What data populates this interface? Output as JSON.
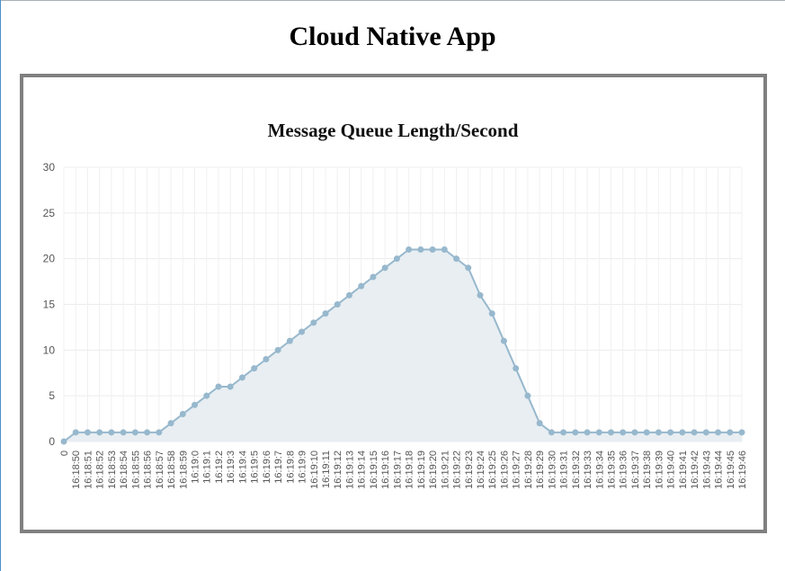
{
  "page": {
    "title": "Cloud Native App"
  },
  "chart_data": {
    "type": "line",
    "title": "Message Queue Length/Second",
    "xlabel": "",
    "ylabel": "",
    "ylim": [
      0,
      30
    ],
    "yticks": [
      0,
      5,
      10,
      15,
      20,
      25,
      30
    ],
    "grid": true,
    "legend": "none",
    "categories": [
      "0",
      "16:18:50",
      "16:18:51",
      "16:18:52",
      "16:18:53",
      "16:18:54",
      "16:18:55",
      "16:18:56",
      "16:18:57",
      "16:18:58",
      "16:18:59",
      "16:19:0",
      "16:19:1",
      "16:19:2",
      "16:19:3",
      "16:19:4",
      "16:19:5",
      "16:19:6",
      "16:19:7",
      "16:19:8",
      "16:19:9",
      "16:19:10",
      "16:19:11",
      "16:19:12",
      "16:19:13",
      "16:19:14",
      "16:19:15",
      "16:19:16",
      "16:19:17",
      "16:19:18",
      "16:19:19",
      "16:19:20",
      "16:19:21",
      "16:19:22",
      "16:19:23",
      "16:19:24",
      "16:19:25",
      "16:19:26",
      "16:19:27",
      "16:19:28",
      "16:19:29",
      "16:19:30",
      "16:19:31",
      "16:19:32",
      "16:19:33",
      "16:19:34",
      "16:19:35",
      "16:19:36",
      "16:19:37",
      "16:19:38",
      "16:19:39",
      "16:19:40",
      "16:19:41",
      "16:19:42",
      "16:19:43",
      "16:19:44",
      "16:19:45",
      "16:19:46"
    ],
    "series": [
      {
        "values": [
          0,
          1,
          1,
          1,
          1,
          1,
          1,
          1,
          1,
          2,
          3,
          4,
          5,
          6,
          6,
          7,
          8,
          9,
          10,
          11,
          12,
          13,
          14,
          15,
          16,
          17,
          18,
          19,
          20,
          21,
          21,
          21,
          21,
          20,
          19,
          16,
          14,
          11,
          8,
          5,
          2,
          1,
          1,
          1,
          1,
          1,
          1,
          1,
          1,
          1,
          1,
          1,
          1,
          1,
          1,
          1,
          1,
          1
        ],
        "color": "#97b8cd",
        "fill": "#e8eef2"
      }
    ]
  }
}
